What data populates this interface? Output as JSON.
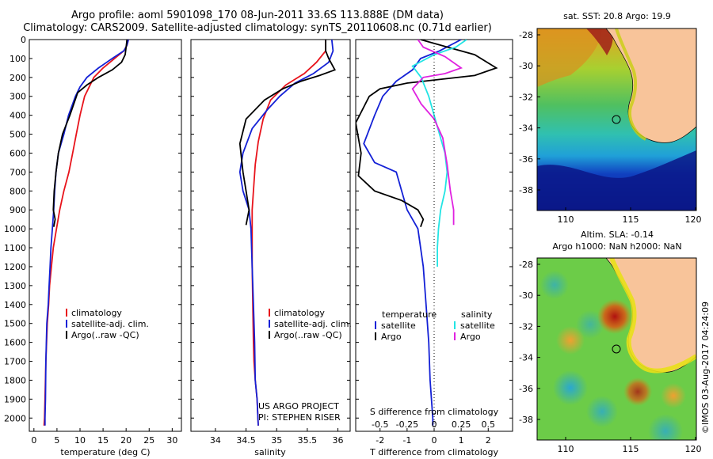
{
  "header": {
    "line1": "Argo profile: aoml 5901098_170 08-Jun-2011 33.6S 113.888E (DM data)",
    "line2": "Climatology: CARS2009. Satellite-adjusted climatology: synTS_20110608.nc (0.71d earlier)"
  },
  "colors": {
    "climatology": "#e8131b",
    "satellite": "#1421d6",
    "argo": "#000000",
    "sat_salinity": "#22e4e4",
    "argo_salinity": "#e022e0",
    "land": "#f8c49a"
  },
  "depth_ticks": [
    "0",
    "100",
    "200",
    "300",
    "400",
    "500",
    "600",
    "700",
    "800",
    "900",
    "1000",
    "1100",
    "1200",
    "1300",
    "1400",
    "1500",
    "1600",
    "1700",
    "1800",
    "1900",
    "2000"
  ],
  "chart_data": [
    {
      "type": "line",
      "id": "temperature",
      "xlabel": "temperature (deg C)",
      "ylabel": "",
      "xlim": [
        -1,
        32
      ],
      "ylim": [
        0,
        2070
      ],
      "xticks": [
        "0",
        "5",
        "10",
        "15",
        "20",
        "25",
        "30"
      ],
      "legend": [
        "climatology",
        "satellite-adj. clim.",
        "Argo(..raw -QC)"
      ],
      "series": [
        {
          "name": "climatology",
          "color": "#e8131b",
          "x": [
            20.5,
            20.2,
            19.5,
            17.5,
            15.0,
            13.0,
            12.0,
            11.0,
            10.0,
            9.2,
            8.4,
            7.6,
            6.5,
            5.6,
            4.9,
            4.2,
            3.8,
            3.4,
            3.2,
            2.9,
            2.6,
            2.4,
            2.3,
            2.2
          ],
          "depth": [
            0,
            30,
            60,
            100,
            150,
            200,
            250,
            300,
            400,
            500,
            600,
            700,
            800,
            900,
            1000,
            1100,
            1200,
            1300,
            1400,
            1500,
            1700,
            1900,
            2000,
            2040
          ]
        },
        {
          "name": "satellite-adj. clim.",
          "color": "#1421d6",
          "x": [
            20.5,
            20.2,
            19.5,
            17.0,
            14.0,
            11.5,
            10.0,
            9.0,
            7.5,
            6.5,
            5.3,
            4.8,
            4.5,
            4.3,
            4.0,
            3.7,
            3.5,
            3.3,
            3.1,
            2.8,
            2.6,
            2.5,
            2.4,
            2.4
          ],
          "depth": [
            0,
            30,
            60,
            100,
            150,
            200,
            250,
            300,
            400,
            500,
            600,
            700,
            800,
            900,
            1000,
            1100,
            1200,
            1300,
            1400,
            1500,
            1700,
            1900,
            2000,
            2040
          ]
        },
        {
          "name": "Argo(..raw -QC)",
          "color": "#000000",
          "x": [
            20.2,
            20.0,
            19.8,
            19.0,
            17.0,
            14.0,
            11.5,
            9.5,
            7.8,
            6.2,
            5.3,
            4.8,
            4.4,
            4.2,
            4.6,
            4.3
          ],
          "depth": [
            0,
            40,
            80,
            120,
            160,
            200,
            240,
            280,
            400,
            500,
            600,
            700,
            800,
            900,
            950,
            990
          ]
        }
      ],
      "annotations": []
    },
    {
      "type": "line",
      "id": "salinity",
      "xlabel": "salinity",
      "ylabel": "",
      "xlim": [
        33.6,
        36.2
      ],
      "ylim": [
        0,
        2070
      ],
      "xticks": [
        "34",
        "34.5",
        "35",
        "35.5",
        "36"
      ],
      "legend": [
        "climatology",
        "satellite-adj. clim.",
        "Argo(..raw -QC)"
      ],
      "series": [
        {
          "name": "climatology",
          "color": "#e8131b",
          "x": [
            35.8,
            35.8,
            35.65,
            35.45,
            35.15,
            34.9,
            34.78,
            34.7,
            34.65,
            34.62,
            34.6,
            34.6,
            34.6,
            34.61,
            34.62,
            34.63,
            34.65,
            34.68,
            34.7
          ],
          "depth": [
            0,
            60,
            120,
            180,
            240,
            320,
            420,
            540,
            660,
            800,
            900,
            1000,
            1200,
            1400,
            1600,
            1700,
            1800,
            1900,
            2040
          ]
        },
        {
          "name": "satellite-adj. clim.",
          "color": "#1421d6",
          "x": [
            35.9,
            35.92,
            35.85,
            35.6,
            35.3,
            35.05,
            34.85,
            34.6,
            34.45,
            34.4,
            34.45,
            34.55,
            34.58,
            34.6,
            34.62,
            34.64,
            34.65,
            34.68,
            34.7
          ],
          "depth": [
            0,
            60,
            120,
            180,
            230,
            300,
            370,
            470,
            600,
            700,
            800,
            900,
            1000,
            1200,
            1400,
            1600,
            1800,
            1900,
            2040
          ]
        },
        {
          "name": "Argo(..raw -QC)",
          "color": "#000000",
          "x": [
            35.8,
            35.8,
            35.85,
            35.95,
            35.7,
            35.4,
            35.1,
            34.8,
            34.5,
            34.4,
            34.45,
            34.5,
            34.55,
            34.5
          ],
          "depth": [
            0,
            60,
            100,
            160,
            190,
            220,
            260,
            320,
            420,
            550,
            700,
            800,
            900,
            980
          ]
        }
      ],
      "annotations": [
        "US ARGO PROJECT",
        "PI: STEPHEN RISER"
      ]
    },
    {
      "type": "line",
      "id": "difference",
      "xlabel": "T difference from climatology",
      "xlabel_top": "S difference from climatology",
      "ylabel": "",
      "xlim": [
        -2.9,
        2.9
      ],
      "ylim": [
        0,
        2070
      ],
      "xticks_bottom": [
        "-2",
        "-1",
        "0",
        "1",
        "2"
      ],
      "xticks_top": [
        "-0.5",
        "-0.25",
        "0",
        "0.25",
        "0.5"
      ],
      "legend_temperature": {
        "title": "temperature",
        "items": [
          "satellite",
          "Argo"
        ]
      },
      "legend_salinity": {
        "title": "salinity",
        "items": [
          "satellite",
          "Argo"
        ]
      },
      "series": [
        {
          "name": "temperature satellite",
          "color": "#1421d6",
          "x": [
            1.0,
            0.2,
            -0.5,
            -0.8,
            -1.4,
            -1.9,
            -2.2,
            -2.6,
            -2.2,
            -1.4,
            -1.2,
            -1.0,
            -0.6,
            -0.4,
            -0.3,
            -0.2,
            -0.15,
            -0.1,
            -0.05,
            -0.05
          ],
          "depth": [
            0,
            60,
            100,
            160,
            220,
            300,
            400,
            550,
            650,
            700,
            800,
            900,
            1000,
            1200,
            1400,
            1600,
            1800,
            1900,
            2000,
            2040
          ]
        },
        {
          "name": "temperature Argo",
          "color": "#000000",
          "x": [
            -0.5,
            0.5,
            1.5,
            2.3,
            1.5,
            -1.0,
            -2.0,
            -2.4,
            -2.9,
            -2.7,
            -2.8,
            -2.2,
            -1.2,
            -0.6,
            -0.4,
            -0.5
          ],
          "depth": [
            0,
            40,
            80,
            150,
            190,
            230,
            260,
            300,
            440,
            600,
            720,
            800,
            850,
            900,
            950,
            990
          ]
        },
        {
          "name": "salinity satellite",
          "color": "#22e4e4",
          "x": [
            0.3,
            0.2,
            0.0,
            -0.2,
            -0.12,
            -0.05,
            0.0,
            0.05,
            0.1,
            0.12,
            0.1,
            0.06,
            0.04,
            0.03,
            0.03
          ],
          "depth": [
            0,
            40,
            80,
            140,
            200,
            300,
            400,
            500,
            600,
            700,
            800,
            900,
            1000,
            1100,
            1200
          ]
        },
        {
          "name": "salinity Argo",
          "color": "#e022e0",
          "x": [
            -0.15,
            -0.1,
            0.1,
            0.25,
            0.1,
            -0.1,
            -0.2,
            -0.12,
            0.0,
            0.08,
            0.12,
            0.15,
            0.18,
            0.18
          ],
          "depth": [
            0,
            40,
            90,
            150,
            180,
            200,
            260,
            340,
            420,
            520,
            660,
            800,
            900,
            980
          ]
        }
      ]
    }
  ],
  "map_sst": {
    "title": "sat. SST: 20.8 Argo: 19.9",
    "lat_ticks": [
      "-28",
      "-30",
      "-32",
      "-34",
      "-36",
      "-38"
    ],
    "lon_ticks": [
      "110",
      "115",
      "120"
    ]
  },
  "map_sla": {
    "title1": "Altim. SLA: -0.14",
    "title2": "Argo h1000: NaN h2000: NaN",
    "lat_ticks": [
      "-28",
      "-30",
      "-32",
      "-34",
      "-36",
      "-38"
    ],
    "lon_ticks": [
      "110",
      "115",
      "120"
    ]
  },
  "credit": "©IMOS 03-Aug-2017 04:24:09"
}
